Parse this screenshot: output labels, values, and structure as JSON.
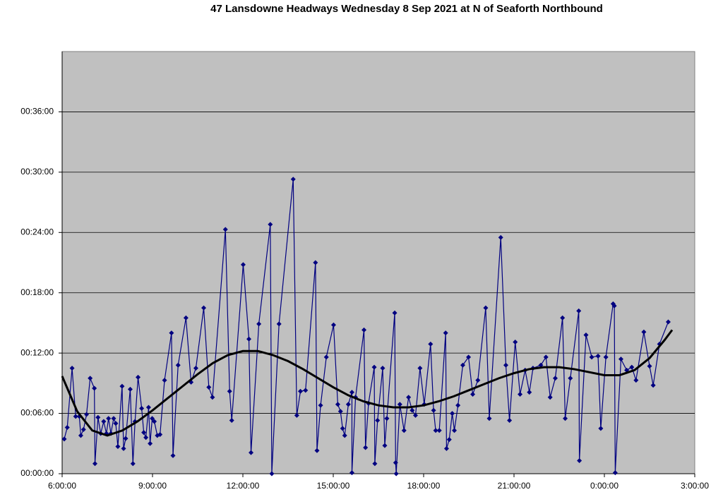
{
  "chart_data": {
    "type": "line",
    "title": "47 Lansdowne Headways Wednesday 8 Sep 2021 at N of Seaforth Northbound",
    "xlim": [
      6,
      27
    ],
    "xticks": [
      {
        "value": 6,
        "label": "6:00:00"
      },
      {
        "value": 9,
        "label": "9:00:00"
      },
      {
        "value": 12,
        "label": "12:00:00"
      },
      {
        "value": 15,
        "label": "15:00:00"
      },
      {
        "value": 18,
        "label": "18:00:00"
      },
      {
        "value": 21,
        "label": "21:00:00"
      },
      {
        "value": 24,
        "label": "0:00:00"
      },
      {
        "value": 27,
        "label": "3:00:00"
      }
    ],
    "ylim": [
      0,
      42
    ],
    "yticks": [
      {
        "value": 0,
        "label": "00:00:00"
      },
      {
        "value": 6,
        "label": "00:06:00"
      },
      {
        "value": 12,
        "label": "00:12:00"
      },
      {
        "value": 18,
        "label": "00:18:00"
      },
      {
        "value": 24,
        "label": "00:24:00"
      },
      {
        "value": 30,
        "label": "00:30:00"
      },
      {
        "value": 36,
        "label": "00:36:00"
      }
    ],
    "grid": true,
    "background": "#c0c0c0",
    "series": [
      {
        "color": "#000080",
        "marker": true,
        "x": [
          6.07,
          6.17,
          6.33,
          6.45,
          6.57,
          6.62,
          6.71,
          6.81,
          6.93,
          7.07,
          7.09,
          7.19,
          7.28,
          7.38,
          7.47,
          7.54,
          7.62,
          7.71,
          7.78,
          7.85,
          7.99,
          8.04,
          8.11,
          8.26,
          8.35,
          8.42,
          8.52,
          8.64,
          8.71,
          8.78,
          8.87,
          8.92,
          8.99,
          9.06,
          9.16,
          9.25,
          9.4,
          9.63,
          9.68,
          9.85,
          10.11,
          10.28,
          10.44,
          10.7,
          10.87,
          10.99,
          11.42,
          11.56,
          11.63,
          12.01,
          12.2,
          12.27,
          12.53,
          12.91,
          12.96,
          13.2,
          13.67,
          13.79,
          13.91,
          14.08,
          14.41,
          14.46,
          14.58,
          14.77,
          15.01,
          15.15,
          15.24,
          15.31,
          15.38,
          15.5,
          15.62,
          15.62,
          15.74,
          16.02,
          16.07,
          16.17,
          16.36,
          16.38,
          16.47,
          16.64,
          16.71,
          16.78,
          17.04,
          17.07,
          17.09,
          17.21,
          17.35,
          17.5,
          17.62,
          17.73,
          17.88,
          18.02,
          18.23,
          18.33,
          18.4,
          18.52,
          18.73,
          18.76,
          18.85,
          18.95,
          19.02,
          19.14,
          19.3,
          19.49,
          19.63,
          19.8,
          20.06,
          20.18,
          20.56,
          20.73,
          20.85,
          21.04,
          21.2,
          21.37,
          21.51,
          21.63,
          21.89,
          22.06,
          22.2,
          22.37,
          22.61,
          22.7,
          22.87,
          23.15,
          23.17,
          23.39,
          23.58,
          23.79,
          23.88,
          24.05,
          24.29,
          24.33,
          24.36,
          24.55,
          24.74,
          24.91,
          25.05,
          25.31,
          25.5,
          25.62,
          25.83,
          26.12
        ],
        "values": [
          3.45,
          4.6,
          10.5,
          5.7,
          5.7,
          3.8,
          4.4,
          5.9,
          9.5,
          8.5,
          1.0,
          5.6,
          4.0,
          5.2,
          4.0,
          5.5,
          4.0,
          5.5,
          5.0,
          2.7,
          8.7,
          2.5,
          3.5,
          8.4,
          1.0,
          5.2,
          9.6,
          6.5,
          4.1,
          3.6,
          6.6,
          3.0,
          5.5,
          5.2,
          3.8,
          3.9,
          9.3,
          14.0,
          1.8,
          10.8,
          15.5,
          9.1,
          10.5,
          16.5,
          8.6,
          7.6,
          24.3,
          8.2,
          5.3,
          20.8,
          13.4,
          2.1,
          14.9,
          24.8,
          0,
          14.9,
          29.3,
          5.8,
          8.2,
          8.3,
          21.0,
          2.3,
          6.8,
          11.6,
          14.8,
          6.9,
          6.2,
          4.5,
          3.8,
          6.9,
          8.1,
          0.1,
          7.6,
          14.3,
          2.6,
          7.0,
          10.6,
          1.0,
          5.3,
          10.5,
          2.8,
          5.5,
          16.0,
          1.1,
          0,
          6.9,
          4.3,
          7.6,
          6.3,
          5.8,
          10.5,
          6.9,
          12.9,
          6.3,
          4.3,
          4.3,
          14.0,
          2.5,
          3.4,
          6.0,
          4.3,
          6.8,
          10.8,
          11.6,
          7.9,
          9.3,
          16.5,
          5.5,
          23.5,
          10.8,
          5.3,
          13.1,
          7.9,
          10.3,
          8.1,
          10.5,
          10.8,
          11.6,
          7.6,
          9.5,
          15.5,
          5.5,
          9.5,
          16.2,
          1.3,
          13.8,
          11.6,
          11.7,
          4.5,
          11.6,
          16.9,
          16.7,
          0.1,
          11.4,
          10.3,
          10.6,
          9.3,
          14.1,
          10.7,
          8.8,
          12.9,
          15.1
        ]
      },
      {
        "color": "#000000",
        "marker": false,
        "x": [
          6,
          6.5,
          7,
          7.5,
          8,
          8.5,
          9,
          9.5,
          10,
          10.5,
          11,
          11.5,
          12,
          12.5,
          13,
          13.5,
          14,
          14.5,
          15,
          15.5,
          16,
          16.5,
          17,
          17.5,
          18,
          18.5,
          19,
          19.5,
          20,
          20.5,
          21,
          21.5,
          22,
          22.5,
          23,
          23.5,
          24,
          24.5,
          25,
          25.5,
          26,
          26.25
        ],
        "values": [
          9.7,
          6.2,
          4.3,
          3.8,
          4.3,
          5.2,
          6.3,
          7.5,
          8.7,
          9.9,
          11.0,
          11.8,
          12.2,
          12.2,
          11.8,
          11.2,
          10.4,
          9.5,
          8.6,
          7.8,
          7.2,
          6.8,
          6.6,
          6.6,
          6.8,
          7.2,
          7.7,
          8.3,
          8.9,
          9.5,
          10.0,
          10.4,
          10.6,
          10.6,
          10.4,
          10.1,
          9.8,
          9.8,
          10.3,
          11.5,
          13.3,
          14.3
        ]
      }
    ]
  }
}
